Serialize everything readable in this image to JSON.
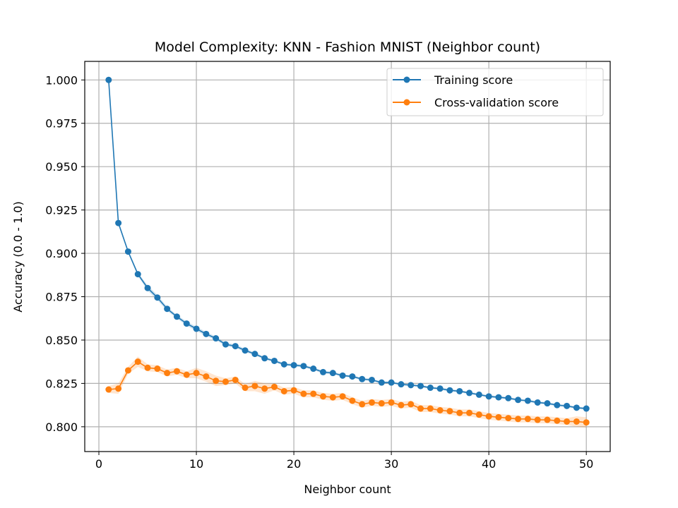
{
  "chart_data": {
    "type": "line",
    "title": "Model Complexity: KNN - Fashion MNIST (Neighbor count)",
    "xlabel": "Neighbor count",
    "ylabel": "Accuracy (0.0 - 1.0)",
    "xlim": [
      -1.45,
      52.45
    ],
    "ylim": [
      0.7857,
      1.0107
    ],
    "xticks": [
      0,
      10,
      20,
      30,
      40,
      50
    ],
    "yticks": [
      0.8,
      0.825,
      0.85,
      0.875,
      0.9,
      0.925,
      0.95,
      0.975,
      1.0
    ],
    "ytick_labels": [
      "0.800",
      "0.825",
      "0.850",
      "0.875",
      "0.900",
      "0.925",
      "0.950",
      "0.975",
      "1.000"
    ],
    "grid": true,
    "legend_position": "top-right",
    "x": [
      1,
      2,
      3,
      4,
      5,
      6,
      7,
      8,
      9,
      10,
      11,
      12,
      13,
      14,
      15,
      16,
      17,
      18,
      19,
      20,
      21,
      22,
      23,
      24,
      25,
      26,
      27,
      28,
      29,
      30,
      31,
      32,
      33,
      34,
      35,
      36,
      37,
      38,
      39,
      40,
      41,
      42,
      43,
      44,
      45,
      46,
      47,
      48,
      49,
      50
    ],
    "series": [
      {
        "name": "Training score",
        "color": "#1f77b4",
        "values": [
          1.0,
          0.9175,
          0.901,
          0.888,
          0.88,
          0.8745,
          0.868,
          0.8635,
          0.8595,
          0.8565,
          0.8535,
          0.851,
          0.8475,
          0.8465,
          0.844,
          0.842,
          0.8395,
          0.838,
          0.836,
          0.8355,
          0.835,
          0.8335,
          0.8315,
          0.831,
          0.8295,
          0.829,
          0.8275,
          0.827,
          0.8255,
          0.8255,
          0.8245,
          0.824,
          0.8235,
          0.8225,
          0.822,
          0.821,
          0.8205,
          0.8195,
          0.8185,
          0.8175,
          0.817,
          0.8165,
          0.8155,
          0.815,
          0.814,
          0.8135,
          0.8125,
          0.812,
          0.811,
          0.8105
        ],
        "band": [
          0.0005,
          0.0008,
          0.0008,
          0.001,
          0.0015,
          0.0015,
          0.0012,
          0.001,
          0.0012,
          0.0012,
          0.0012,
          0.001,
          0.001,
          0.001,
          0.001,
          0.0008,
          0.0008,
          0.0008,
          0.0008,
          0.0008,
          0.0008,
          0.0008,
          0.0008,
          0.0008,
          0.0007,
          0.0007,
          0.0007,
          0.0007,
          0.0007,
          0.0007,
          0.0007,
          0.0007,
          0.0007,
          0.0007,
          0.0007,
          0.0007,
          0.0007,
          0.0007,
          0.0007,
          0.0007,
          0.0007,
          0.0007,
          0.0007,
          0.0007,
          0.0007,
          0.0007,
          0.0007,
          0.0007,
          0.0007,
          0.0007
        ]
      },
      {
        "name": "Cross-validation score",
        "color": "#ff7f0e",
        "values": [
          0.8215,
          0.822,
          0.8325,
          0.8375,
          0.834,
          0.8335,
          0.831,
          0.832,
          0.83,
          0.831,
          0.829,
          0.8265,
          0.826,
          0.827,
          0.8225,
          0.8235,
          0.822,
          0.823,
          0.8205,
          0.821,
          0.819,
          0.819,
          0.8175,
          0.817,
          0.8175,
          0.815,
          0.813,
          0.814,
          0.8135,
          0.814,
          0.8125,
          0.813,
          0.8105,
          0.8105,
          0.8095,
          0.809,
          0.808,
          0.808,
          0.807,
          0.806,
          0.8055,
          0.805,
          0.8045,
          0.8045,
          0.804,
          0.804,
          0.8035,
          0.803,
          0.803,
          0.8025
        ],
        "band": [
          0.002,
          0.003,
          0.002,
          0.003,
          0.002,
          0.002,
          0.002,
          0.002,
          0.002,
          0.003,
          0.003,
          0.003,
          0.002,
          0.002,
          0.002,
          0.003,
          0.003,
          0.002,
          0.002,
          0.002,
          0.002,
          0.002,
          0.002,
          0.002,
          0.002,
          0.002,
          0.002,
          0.002,
          0.002,
          0.002,
          0.002,
          0.002,
          0.002,
          0.002,
          0.002,
          0.002,
          0.002,
          0.002,
          0.002,
          0.002,
          0.002,
          0.002,
          0.002,
          0.002,
          0.002,
          0.002,
          0.002,
          0.002,
          0.003,
          0.003
        ]
      }
    ]
  }
}
